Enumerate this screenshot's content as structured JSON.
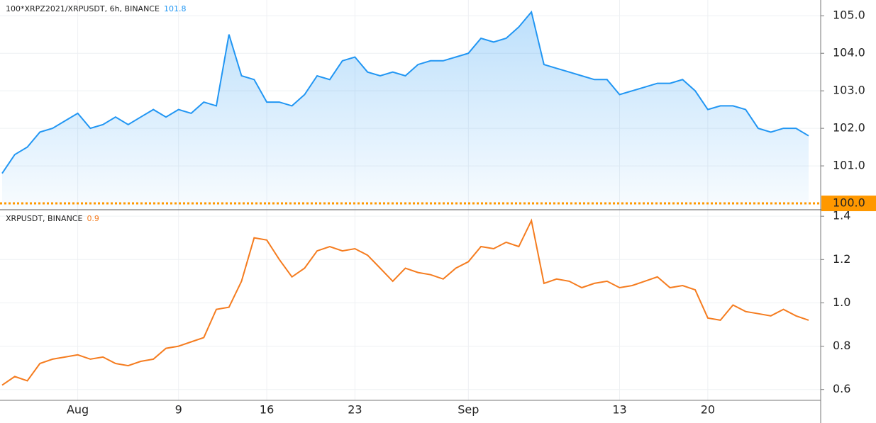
{
  "chart_data": [
    {
      "type": "area",
      "legend_title": "100*XRPZ2021/XRPUSDT, 6h, BINANCE",
      "legend_value": 101.8,
      "series": [
        {
          "color": "#2196f3",
          "values": [
            100.8,
            101.3,
            101.5,
            101.9,
            102.0,
            102.2,
            102.4,
            102.0,
            102.1,
            102.3,
            102.1,
            102.3,
            102.5,
            102.3,
            102.5,
            102.4,
            102.7,
            102.6,
            104.5,
            103.4,
            103.3,
            102.7,
            102.7,
            102.6,
            102.9,
            103.4,
            103.3,
            103.8,
            103.9,
            103.5,
            103.4,
            103.5,
            103.4,
            103.7,
            103.8,
            103.8,
            103.9,
            104.0,
            104.4,
            104.3,
            104.4,
            104.7,
            105.1,
            103.7,
            103.6,
            103.5,
            103.4,
            103.3,
            103.3,
            102.9,
            103.0,
            103.1,
            103.2,
            103.2,
            103.3,
            103.0,
            102.5,
            102.6,
            102.6,
            102.5,
            102.0,
            101.9,
            102.0,
            102.0,
            101.8
          ]
        }
      ],
      "ylim": [
        99.85,
        105.42
      ],
      "yticks": [
        {
          "value": 101,
          "label": "101.0"
        },
        {
          "value": 102,
          "label": "102.0"
        },
        {
          "value": 103,
          "label": "103.0"
        },
        {
          "value": 104,
          "label": "104.0"
        },
        {
          "value": 105,
          "label": "105.0"
        }
      ],
      "baseline": {
        "value": 100,
        "label": "100.0",
        "color": "#ff9800"
      },
      "grid": true
    },
    {
      "type": "line",
      "legend_title": "XRPUSDT, BINANCE",
      "legend_value": 0.9,
      "categories": [
        null,
        null,
        null,
        null,
        null,
        null,
        "Aug",
        null,
        null,
        null,
        null,
        null,
        null,
        null,
        "9",
        null,
        null,
        null,
        null,
        null,
        null,
        "16",
        null,
        null,
        null,
        null,
        null,
        null,
        "23",
        null,
        null,
        null,
        null,
        null,
        null,
        null,
        null,
        "Sep",
        null,
        null,
        null,
        null,
        null,
        null,
        null,
        null,
        null,
        null,
        null,
        "13",
        null,
        null,
        null,
        null,
        null,
        null,
        "20",
        null,
        null,
        null,
        null,
        null,
        null,
        null,
        null
      ],
      "series": [
        {
          "color": "#f57c1f",
          "values": [
            0.62,
            0.66,
            0.64,
            0.72,
            0.74,
            0.75,
            0.76,
            0.74,
            0.75,
            0.72,
            0.71,
            0.73,
            0.74,
            0.79,
            0.8,
            0.82,
            0.84,
            0.97,
            0.98,
            1.1,
            1.3,
            1.29,
            1.2,
            1.12,
            1.16,
            1.24,
            1.26,
            1.24,
            1.25,
            1.22,
            1.16,
            1.1,
            1.16,
            1.14,
            1.13,
            1.11,
            1.16,
            1.19,
            1.26,
            1.25,
            1.28,
            1.26,
            1.38,
            1.09,
            1.11,
            1.1,
            1.07,
            1.09,
            1.1,
            1.07,
            1.08,
            1.1,
            1.12,
            1.07,
            1.08,
            1.06,
            0.93,
            0.92,
            0.99,
            0.96,
            0.95,
            0.94,
            0.97,
            0.94,
            0.92
          ]
        }
      ],
      "ylim": [
        0.55,
        1.43
      ],
      "yticks": [
        0.6,
        0.8,
        {
          "value": 1,
          "label": "1.0"
        },
        1.2,
        1.4
      ],
      "grid": true
    }
  ]
}
